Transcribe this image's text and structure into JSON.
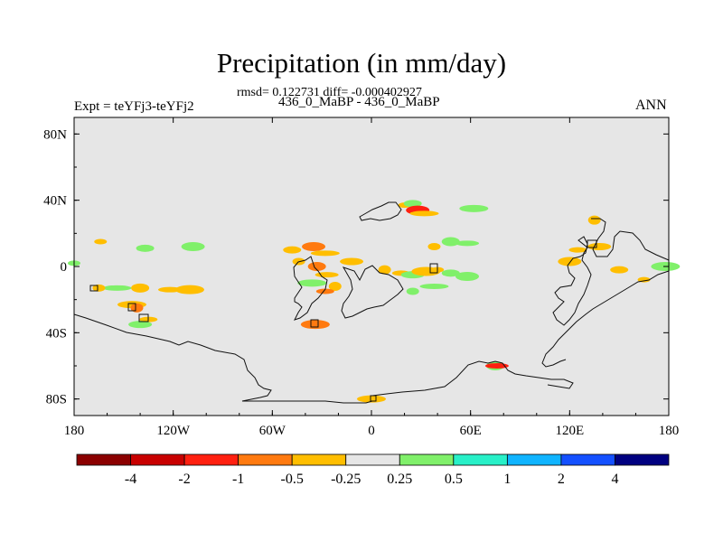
{
  "header": {
    "title": "Precipitation (in mm/day)",
    "stats": "rmsd= 0.122731 diff= -0.000402927",
    "cases": "436_0_MaBP - 436_0_MaBP",
    "expt": "Expt = teYFj3-teYFj2",
    "season": "ANN"
  },
  "chart_data": {
    "type": "heatmap",
    "title": "Precipitation (in mm/day)",
    "subtitle": "436_0_MaBP - 436_0_MaBP",
    "xlabel": "",
    "ylabel": "",
    "xlim": [
      -180,
      180
    ],
    "ylim": [
      -90,
      90
    ],
    "x_ticks": [
      {
        "value": -180,
        "label": "180"
      },
      {
        "value": -120,
        "label": "120W"
      },
      {
        "value": -60,
        "label": "60W"
      },
      {
        "value": 0,
        "label": "0"
      },
      {
        "value": 60,
        "label": "60E"
      },
      {
        "value": 120,
        "label": "120E"
      },
      {
        "value": 180,
        "label": "180"
      }
    ],
    "y_ticks": [
      {
        "value": 80,
        "label": "80N"
      },
      {
        "value": 40,
        "label": "40N"
      },
      {
        "value": 0,
        "label": "0"
      },
      {
        "value": -40,
        "label": "40S"
      },
      {
        "value": -80,
        "label": "80S"
      }
    ],
    "colorbar": {
      "colors": [
        "#8b0000",
        "#c80000",
        "#ff2010",
        "#ff7a10",
        "#ffbe00",
        "#e6e6e6",
        "#80f06a",
        "#28f0c8",
        "#10b4ff",
        "#1450ff",
        "#000080"
      ],
      "labels": [
        "-4",
        "-2",
        "-1",
        "-0.5",
        "-0.25",
        "0.25",
        "0.5",
        "1",
        "2",
        "4"
      ]
    },
    "anomalies": [
      {
        "lon": -164,
        "lat": 15,
        "value": -0.3
      },
      {
        "lon": -137,
        "lat": 11,
        "value": 0.3
      },
      {
        "lon": -108,
        "lat": 12,
        "value": 0.3
      },
      {
        "lon": -154,
        "lat": -13,
        "value": 0.3
      },
      {
        "lon": -165,
        "lat": -13,
        "value": -0.3
      },
      {
        "lon": -140,
        "lat": -13,
        "value": -0.3
      },
      {
        "lon": -122,
        "lat": -14,
        "value": -0.3
      },
      {
        "lon": -145,
        "lat": -23,
        "value": -0.3
      },
      {
        "lon": -142,
        "lat": -25,
        "value": -0.6
      },
      {
        "lon": -135,
        "lat": -32,
        "value": -0.3
      },
      {
        "lon": -140,
        "lat": -35,
        "value": 0.3
      },
      {
        "lon": -110,
        "lat": -14,
        "value": -0.3
      },
      {
        "lon": -180,
        "lat": 2,
        "value": 0.3
      },
      {
        "lon": -48,
        "lat": 10,
        "value": -0.3
      },
      {
        "lon": -35,
        "lat": 12,
        "value": -0.7
      },
      {
        "lon": -28,
        "lat": 8,
        "value": -0.3
      },
      {
        "lon": -44,
        "lat": 3,
        "value": -0.3
      },
      {
        "lon": -33,
        "lat": 0,
        "value": -0.6
      },
      {
        "lon": -27,
        "lat": -5,
        "value": -0.3
      },
      {
        "lon": -36,
        "lat": -10,
        "value": 0.3
      },
      {
        "lon": -22,
        "lat": -12,
        "value": -0.3
      },
      {
        "lon": -28,
        "lat": -15,
        "value": -0.6
      },
      {
        "lon": -12,
        "lat": 3,
        "value": -0.3
      },
      {
        "lon": -34,
        "lat": -35,
        "value": -0.6
      },
      {
        "lon": 20,
        "lat": 37,
        "value": -0.3
      },
      {
        "lon": 25,
        "lat": 38,
        "value": 0.3
      },
      {
        "lon": 28,
        "lat": 34,
        "value": -1.5
      },
      {
        "lon": 32,
        "lat": 32,
        "value": -0.3
      },
      {
        "lon": 38,
        "lat": 12,
        "value": -0.3
      },
      {
        "lon": 48,
        "lat": 15,
        "value": 0.3
      },
      {
        "lon": 58,
        "lat": 14,
        "value": 0.3
      },
      {
        "lon": 62,
        "lat": 35,
        "value": 0.3
      },
      {
        "lon": 8,
        "lat": -2,
        "value": -0.3
      },
      {
        "lon": 18,
        "lat": -4,
        "value": -0.3
      },
      {
        "lon": 25,
        "lat": -5,
        "value": 0.3
      },
      {
        "lon": 33,
        "lat": -3,
        "value": -0.3
      },
      {
        "lon": 40,
        "lat": -2,
        "value": -0.3
      },
      {
        "lon": 48,
        "lat": -4,
        "value": 0.3
      },
      {
        "lon": 58,
        "lat": -6,
        "value": 0.3
      },
      {
        "lon": 38,
        "lat": -12,
        "value": 0.3
      },
      {
        "lon": 25,
        "lat": -15,
        "value": 0.3
      },
      {
        "lon": 75,
        "lat": -60,
        "value": 0.3
      },
      {
        "lon": 76,
        "lat": -60,
        "value": -1.2
      },
      {
        "lon": 0,
        "lat": -80,
        "value": -0.3
      },
      {
        "lon": 135,
        "lat": 28,
        "value": -0.3
      },
      {
        "lon": 125,
        "lat": 10,
        "value": -0.3
      },
      {
        "lon": 138,
        "lat": 12,
        "value": -0.3
      },
      {
        "lon": 178,
        "lat": 0,
        "value": 0.3
      },
      {
        "lon": 165,
        "lat": -8,
        "value": -0.3
      },
      {
        "lon": 150,
        "lat": -2,
        "value": -0.3
      },
      {
        "lon": 120,
        "lat": 3,
        "value": -0.3
      }
    ]
  }
}
